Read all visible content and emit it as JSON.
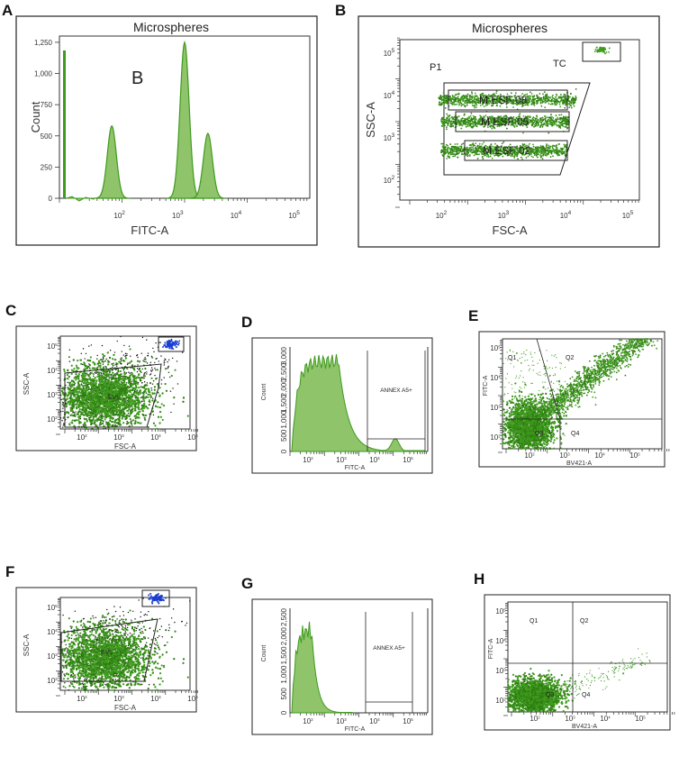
{
  "colors": {
    "green": "#3f9a1e",
    "green_fill": "#8fc46a",
    "green_dark": "#2e7d12",
    "blue": "#1a3fd0",
    "black": "#111111"
  },
  "chart_data": [
    {
      "id": "A",
      "type": "histogram",
      "title": "Microspheres",
      "xlabel": "FITC-A",
      "ylabel": "Count",
      "xlim": [
        1,
        5.3
      ],
      "ylim": [
        0,
        1300
      ],
      "xticks": [
        "10^2",
        "10^3",
        "10^4",
        "10^5"
      ],
      "yticks": [
        "0",
        "250",
        "500",
        "750",
        "1,000",
        "1,250"
      ],
      "peaks": [
        {
          "x": 1.9,
          "height": 580
        },
        {
          "x": 3.15,
          "height": 1250
        },
        {
          "x": 3.55,
          "height": 520
        }
      ],
      "annotation": "B"
    },
    {
      "id": "B",
      "type": "scatter",
      "title": "Microspheres",
      "xlabel": "FSC-A",
      "ylabel": "SSC-A",
      "xticks": [
        "10^2",
        "10^3",
        "10^4",
        "10^5"
      ],
      "yticks": [
        "10^2",
        "10^3",
        "10^4",
        "10^5"
      ],
      "gates": [
        "P1",
        "TC",
        "M ESF 08",
        "M ESF 05",
        "M ESF 02"
      ]
    },
    {
      "id": "C",
      "type": "scatter",
      "xlabel": "FSC-A",
      "ylabel": "SSC-A",
      "xticks": [
        "10^2",
        "10^3",
        "10^4",
        "10^5"
      ],
      "yticks": [
        "10^2",
        "10^3",
        "10^4",
        "10^5"
      ],
      "gates": [
        "EVs"
      ]
    },
    {
      "id": "D",
      "type": "histogram",
      "xlabel": "FITC-A",
      "ylabel": "Count",
      "yticks": [
        "0",
        "500",
        "1,000",
        "1,500",
        "2,000",
        "2,500",
        "3,000"
      ],
      "xticks": [
        "10^2",
        "10^3",
        "10^4",
        "10^5"
      ],
      "gates": [
        "ANNEX A5+"
      ]
    },
    {
      "id": "E",
      "type": "scatter",
      "xlabel": "BV421-A",
      "ylabel": "FITC-A",
      "xticks": [
        "10^2",
        "10^3",
        "10^4",
        "10^5"
      ],
      "yticks": [
        "10^2",
        "10^3",
        "10^4",
        "10^5"
      ],
      "quadrants": [
        "Q1",
        "Q2",
        "Q3",
        "Q4"
      ]
    },
    {
      "id": "F",
      "type": "scatter",
      "xlabel": "FSC-A",
      "ylabel": "SSC-A",
      "xticks": [
        "10^2",
        "10^3",
        "10^4",
        "10^5"
      ],
      "yticks": [
        "10^2",
        "10^3",
        "10^4",
        "10^5"
      ],
      "gates": [
        "EVs"
      ]
    },
    {
      "id": "G",
      "type": "histogram",
      "xlabel": "FITC-A",
      "ylabel": "Count",
      "yticks": [
        "0",
        "500",
        "1,000",
        "1,500",
        "2,000",
        "2,500"
      ],
      "xticks": [
        "10^2",
        "10^3",
        "10^4",
        "10^5"
      ],
      "gates": [
        "ANNEX A5+"
      ]
    },
    {
      "id": "H",
      "type": "scatter",
      "xlabel": "BV421-A",
      "ylabel": "FITC-A",
      "xticks": [
        "10^2",
        "10^3",
        "10^4",
        "10^5"
      ],
      "yticks": [
        "10^2",
        "10^3",
        "10^4",
        "10^5"
      ],
      "quadrants": [
        "Q1",
        "Q2",
        "Q3",
        "Q4"
      ]
    }
  ]
}
